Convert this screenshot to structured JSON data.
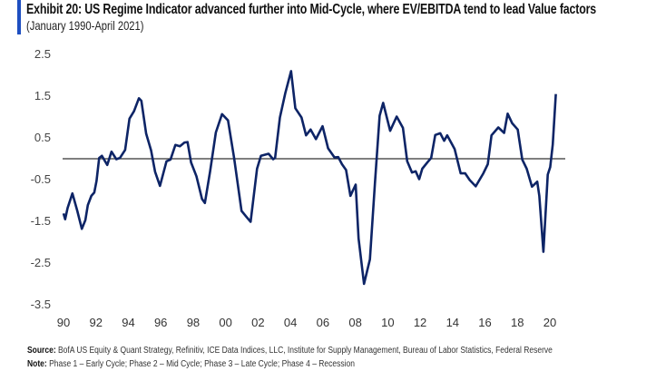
{
  "title": "Exhibit 20: US Regime Indicator advanced further into Mid-Cycle, where EV/EBITDA tend to  lead Value factors",
  "subtitle": "(January 1990-April 2021)",
  "source_label": "Source:",
  "source_text": "BofA US Equity & Quant Strategy, Refinitiv, ICE Data Indices, LLC, Institute for Supply Management, Bureau of Labor Statistics, Federal Reserve",
  "note_label": "Note:",
  "note_text": "Phase 1 – Early Cycle; Phase 2 – Mid Cycle; Phase 3 – Late Cycle; Phase 4 – Recession",
  "colors": {
    "accent_bar": "#1e4fc1",
    "series": "#0d2466",
    "zero_line": "#333333"
  },
  "chart_data": {
    "type": "line",
    "title": "",
    "xlabel": "",
    "ylabel": "",
    "xlim": [
      1990,
      2020
    ],
    "ylim": [
      -3.5,
      2.5
    ],
    "y_ticks": [
      "2.5",
      "1.5",
      "0.5",
      "-0.5",
      "-1.5",
      "-2.5",
      "-3.5"
    ],
    "y_tick_values": [
      2.5,
      1.5,
      0.5,
      -0.5,
      -1.5,
      -2.5,
      -3.5
    ],
    "x_ticks": [
      "90",
      "92",
      "94",
      "96",
      "98",
      "00",
      "02",
      "04",
      "06",
      "08",
      "10",
      "12",
      "14",
      "16",
      "18",
      "20"
    ],
    "x_tick_values": [
      1990,
      1992,
      1994,
      1996,
      1998,
      2000,
      2002,
      2004,
      2006,
      2008,
      2010,
      2012,
      2014,
      2016,
      2018,
      2020
    ],
    "grid": false,
    "reference_line": 0,
    "series": [
      {
        "points": [
          [
            1990.0,
            -1.31
          ],
          [
            1990.1,
            -1.45
          ],
          [
            1990.25,
            -1.18
          ],
          [
            1990.55,
            -0.83
          ],
          [
            1990.85,
            -1.25
          ],
          [
            1991.13,
            -1.68
          ],
          [
            1991.35,
            -1.47
          ],
          [
            1991.5,
            -1.11
          ],
          [
            1991.72,
            -0.89
          ],
          [
            1991.9,
            -0.81
          ],
          [
            1992.04,
            -0.53
          ],
          [
            1992.2,
            0.02
          ],
          [
            1992.37,
            0.07
          ],
          [
            1992.7,
            -0.15
          ],
          [
            1992.96,
            0.17
          ],
          [
            1993.26,
            -0.01
          ],
          [
            1993.48,
            0.02
          ],
          [
            1993.8,
            0.21
          ],
          [
            1994.07,
            0.96
          ],
          [
            1994.35,
            1.14
          ],
          [
            1994.65,
            1.45
          ],
          [
            1994.8,
            1.39
          ],
          [
            1995.1,
            0.6
          ],
          [
            1995.4,
            0.2
          ],
          [
            1995.65,
            -0.31
          ],
          [
            1995.95,
            -0.65
          ],
          [
            1996.35,
            -0.06
          ],
          [
            1996.6,
            -0.02
          ],
          [
            1996.9,
            0.33
          ],
          [
            1997.18,
            0.3
          ],
          [
            1997.46,
            0.39
          ],
          [
            1997.65,
            0.4
          ],
          [
            1997.87,
            -0.09
          ],
          [
            1998.2,
            -0.42
          ],
          [
            1998.54,
            -0.96
          ],
          [
            1998.72,
            -1.06
          ],
          [
            1999.04,
            -0.31
          ],
          [
            1999.4,
            0.63
          ],
          [
            1999.78,
            1.07
          ],
          [
            2000.15,
            0.92
          ],
          [
            2000.52,
            0.02
          ],
          [
            2000.98,
            -1.25
          ],
          [
            2001.3,
            -1.4
          ],
          [
            2001.54,
            -1.51
          ],
          [
            2001.94,
            -0.24
          ],
          [
            2002.18,
            0.07
          ],
          [
            2002.65,
            0.12
          ],
          [
            2002.93,
            -0.01
          ],
          [
            2003.05,
            0.02
          ],
          [
            2003.35,
            0.99
          ],
          [
            2003.68,
            1.57
          ],
          [
            2004.04,
            2.1
          ],
          [
            2004.3,
            1.21
          ],
          [
            2004.68,
            0.99
          ],
          [
            2004.96,
            0.56
          ],
          [
            2005.24,
            0.7
          ],
          [
            2005.57,
            0.47
          ],
          [
            2005.98,
            0.78
          ],
          [
            2006.32,
            0.25
          ],
          [
            2006.72,
            0.03
          ],
          [
            2006.95,
            0.04
          ],
          [
            2007.18,
            -0.13
          ],
          [
            2007.43,
            -0.27
          ],
          [
            2007.7,
            -0.89
          ],
          [
            2008.02,
            -0.62
          ],
          [
            2008.2,
            -1.91
          ],
          [
            2008.54,
            -3.0
          ],
          [
            2008.9,
            -2.41
          ],
          [
            2009.22,
            -0.53
          ],
          [
            2009.5,
            1.03
          ],
          [
            2009.72,
            1.34
          ],
          [
            2010.15,
            0.67
          ],
          [
            2010.55,
            1.01
          ],
          [
            2010.94,
            0.74
          ],
          [
            2011.2,
            -0.06
          ],
          [
            2011.5,
            -0.33
          ],
          [
            2011.72,
            -0.3
          ],
          [
            2011.94,
            -0.49
          ],
          [
            2012.13,
            -0.24
          ],
          [
            2012.46,
            -0.08
          ],
          [
            2012.68,
            0.02
          ],
          [
            2012.93,
            0.57
          ],
          [
            2013.24,
            0.61
          ],
          [
            2013.48,
            0.43
          ],
          [
            2013.67,
            0.56
          ],
          [
            2014.13,
            0.23
          ],
          [
            2014.5,
            -0.35
          ],
          [
            2014.78,
            -0.35
          ],
          [
            2015.06,
            -0.51
          ],
          [
            2015.43,
            -0.66
          ],
          [
            2015.9,
            -0.35
          ],
          [
            2016.17,
            -0.13
          ],
          [
            2016.4,
            0.56
          ],
          [
            2016.82,
            0.75
          ],
          [
            2017.18,
            0.62
          ],
          [
            2017.4,
            1.08
          ],
          [
            2017.68,
            0.85
          ],
          [
            2018.02,
            0.7
          ],
          [
            2018.3,
            -0.02
          ],
          [
            2018.57,
            -0.24
          ],
          [
            2018.9,
            -0.67
          ],
          [
            2019.22,
            -0.55
          ],
          [
            2019.35,
            -0.89
          ],
          [
            2019.6,
            -2.23
          ],
          [
            2019.87,
            -0.38
          ],
          [
            2020.02,
            -0.2
          ],
          [
            2020.18,
            0.34
          ],
          [
            2020.37,
            1.55
          ]
        ]
      }
    ]
  }
}
